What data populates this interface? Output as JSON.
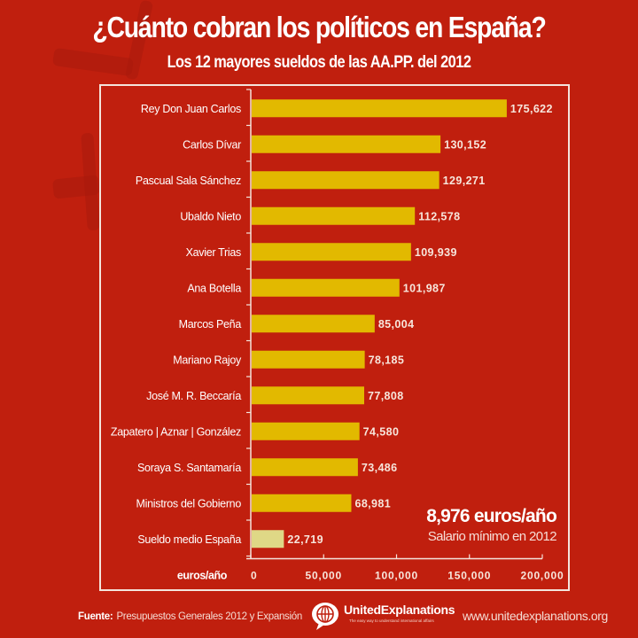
{
  "header": {
    "title": "¿Cuánto cobran los políticos en España?",
    "subtitle": "Los 12 mayores sueldos de las AA.PP. del 2012"
  },
  "colors": {
    "background": "#c01f0e",
    "bar": "#e2b900",
    "bar_highlight": "#dfd886",
    "frame": "#f4e4dc"
  },
  "annotation": {
    "value": "8,976 euros/año",
    "label": "Salario mínimo en 2012"
  },
  "footer": {
    "source_label": "Fuente:",
    "source_text": "Presupuestos Generales 2012 y Expansión",
    "logo_name": "UnitedExplanations",
    "logo_tagline": "The easy way to understand international affairs",
    "logo_icon": "globe-speech-bubble-icon",
    "url": "www.unitedexplanations.org"
  },
  "chart_data": {
    "type": "bar",
    "orientation": "horizontal",
    "title": "¿Cuánto cobran los políticos en España?",
    "subtitle": "Los 12 mayores sueldos de las AA.PP. del 2012",
    "xlabel": "euros/año",
    "ylabel": "",
    "xlim": [
      0,
      200000
    ],
    "xticks": [
      0,
      50000,
      100000,
      150000,
      200000
    ],
    "xtick_labels": [
      "0",
      "50,000",
      "100,000",
      "150,000",
      "200,000"
    ],
    "grid": false,
    "categories": [
      "Rey Don Juan Carlos",
      "Carlos Dívar",
      "Pascual Sala Sánchez",
      "Ubaldo Nieto",
      "Xavier Trias",
      "Ana Botella",
      "Marcos Peña",
      "Mariano Rajoy",
      "José M. R. Beccaría",
      "Zapatero | Aznar | González",
      "Soraya S. Santamaría",
      "Ministros del Gobierno",
      "Sueldo medio España"
    ],
    "values": [
      175622,
      130152,
      129271,
      112578,
      109939,
      101987,
      85004,
      78185,
      77808,
      74580,
      73486,
      68981,
      22719
    ],
    "value_labels": [
      "175,622",
      "130,152",
      "129,271",
      "112,578",
      "109,939",
      "101,987",
      "85,004",
      "78,185",
      "77,808",
      "74,580",
      "73,486",
      "68,981",
      "22,719"
    ],
    "highlighted_category": "Sueldo medio España",
    "annotations": [
      "8,976 euros/año",
      "Salario mínimo en 2012"
    ]
  }
}
